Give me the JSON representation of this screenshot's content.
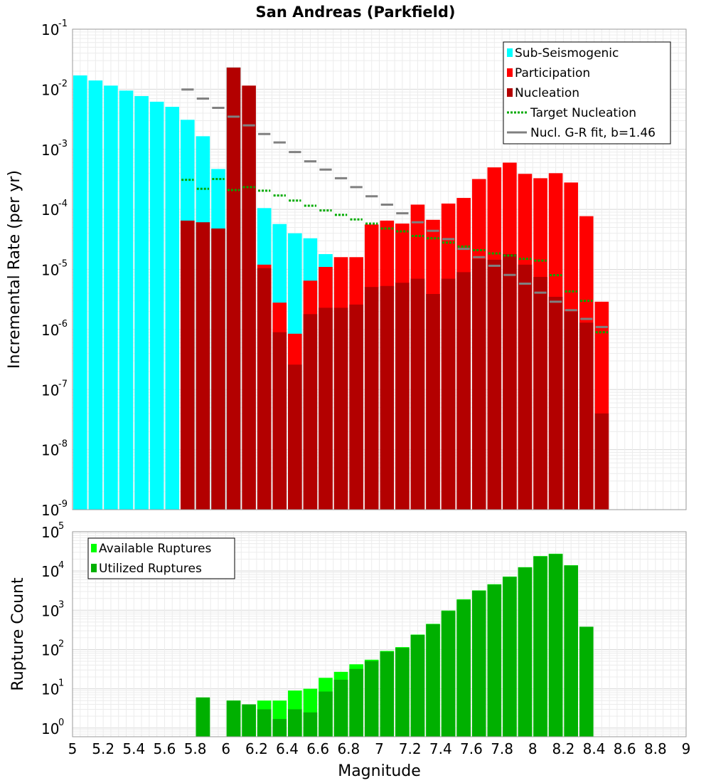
{
  "chart_data": [
    {
      "type": "bar",
      "title": "San Andreas (Parkfield)",
      "ylabel": "Incremental Rate (per yr)",
      "yscale": "log",
      "ylim": [
        1e-09,
        0.1
      ],
      "xlim": [
        5,
        9
      ],
      "bin_width": 0.1,
      "y_ticks": [
        {
          "base": "10",
          "exp": "-9",
          "value": 1e-09
        },
        {
          "base": "10",
          "exp": "-8",
          "value": 1e-08
        },
        {
          "base": "10",
          "exp": "-7",
          "value": 1e-07
        },
        {
          "base": "10",
          "exp": "-6",
          "value": 1e-06
        },
        {
          "base": "10",
          "exp": "-5",
          "value": 1e-05
        },
        {
          "base": "10",
          "exp": "-4",
          "value": 0.0001
        },
        {
          "base": "10",
          "exp": "-3",
          "value": 0.001
        },
        {
          "base": "10",
          "exp": "-2",
          "value": 0.01
        },
        {
          "base": "10",
          "exp": "-1",
          "value": 0.1
        }
      ],
      "legend_position": "top-right",
      "grid": true,
      "series": [
        {
          "name": "Sub-Seismogenic",
          "color": "#00ffff",
          "style": "bar",
          "x": [
            5.05,
            5.15,
            5.25,
            5.35,
            5.45,
            5.55,
            5.65,
            5.75,
            5.85,
            5.95,
            6.05,
            6.25,
            6.35,
            6.45,
            6.55,
            6.65
          ],
          "values": [
            0.017,
            0.014,
            0.0115,
            0.0095,
            0.0077,
            0.0062,
            0.0051,
            0.0031,
            0.00165,
            0.00047,
            0.023,
            0.000105,
            5.7e-05,
            4e-05,
            3.3e-05,
            1.8e-05
          ]
        },
        {
          "name": "Participation",
          "color": "#ff0000",
          "style": "bar",
          "x": [
            6.25,
            6.35,
            6.45,
            6.55,
            6.65,
            6.75,
            6.85,
            6.95,
            7.05,
            7.15,
            7.25,
            7.35,
            7.45,
            7.55,
            7.65,
            7.75,
            7.85,
            7.95,
            8.05,
            8.15,
            8.25,
            8.35,
            8.45
          ],
          "values": [
            1.2e-05,
            2.8e-06,
            8.5e-07,
            6.5e-06,
            1.1e-05,
            1.6e-05,
            1.6e-05,
            5.6e-05,
            6.5e-05,
            5.8e-05,
            0.00012,
            6.7e-05,
            0.000125,
            0.000155,
            0.00032,
            0.0005,
            0.0006,
            0.00039,
            0.00033,
            0.0004,
            0.00028,
            7.7e-05,
            2.9e-06
          ]
        },
        {
          "name": "Nucleation",
          "color": "#b30000",
          "style": "bar",
          "x": [
            5.75,
            5.85,
            5.95,
            6.05,
            6.15,
            6.25,
            6.35,
            6.45,
            6.55,
            6.65,
            6.75,
            6.85,
            6.95,
            7.05,
            7.15,
            7.25,
            7.35,
            7.45,
            7.55,
            7.65,
            7.75,
            7.85,
            7.95,
            8.05,
            8.15,
            8.25,
            8.35,
            8.45
          ],
          "values": [
            6.5e-05,
            6.1e-05,
            4.8e-05,
            0.023,
            0.0115,
            1.05e-05,
            9e-07,
            2.6e-07,
            1.8e-06,
            2.3e-06,
            2.3e-06,
            2.6e-06,
            5.1e-06,
            5.3e-06,
            6e-06,
            7e-06,
            3.9e-06,
            7e-06,
            9e-06,
            1.5e-05,
            1.45e-05,
            1.8e-05,
            1.2e-05,
            7.5e-06,
            3.5e-06,
            2e-06,
            1.3e-06,
            4e-08
          ]
        },
        {
          "name": "Target Nucleation",
          "color": "#00aa00",
          "style": "dotted-segment",
          "x": [
            5.75,
            5.85,
            5.95,
            6.05,
            6.15,
            6.25,
            6.35,
            6.45,
            6.55,
            6.65,
            6.75,
            6.85,
            6.95,
            7.05,
            7.15,
            7.25,
            7.35,
            7.45,
            7.55,
            7.65,
            7.75,
            7.85,
            7.95,
            8.05,
            8.15,
            8.25,
            8.35,
            8.45
          ],
          "values": [
            0.00031,
            0.00022,
            0.00032,
            0.00021,
            0.000235,
            0.000205,
            0.00017,
            0.00014,
            0.000115,
            9.6e-05,
            8.1e-05,
            6.8e-05,
            5.8e-05,
            4.8e-05,
            4.3e-05,
            3.6e-05,
            3.3e-05,
            2.8e-05,
            2.4e-05,
            2.1e-05,
            1.85e-05,
            1.7e-05,
            1.5e-05,
            1.4e-05,
            8e-06,
            4.3e-06,
            3e-06,
            9e-07
          ]
        },
        {
          "name": "Nucl. G-R fit, b=1.46",
          "color": "#808080",
          "style": "segment",
          "x": [
            5.75,
            5.85,
            5.95,
            6.05,
            6.15,
            6.25,
            6.35,
            6.45,
            6.55,
            6.65,
            6.75,
            6.85,
            6.95,
            7.05,
            7.15,
            7.25,
            7.35,
            7.45,
            7.55,
            7.65,
            7.75,
            7.85,
            7.95,
            8.05,
            8.15,
            8.25,
            8.35,
            8.45
          ],
          "values": [
            0.0099,
            0.007,
            0.0049,
            0.0035,
            0.0025,
            0.0018,
            0.0013,
            0.0009,
            0.00063,
            0.00046,
            0.00033,
            0.000235,
            0.000165,
            0.00012,
            8.6e-05,
            6.1e-05,
            4.4e-05,
            3.2e-05,
            2.2e-05,
            1.6e-05,
            1.15e-05,
            8.1e-06,
            5.8e-06,
            4.1e-06,
            2.9e-06,
            2.1e-06,
            1.5e-06,
            1.1e-06
          ]
        }
      ]
    },
    {
      "type": "bar",
      "xlabel": "Magnitude",
      "ylabel": "Rupture Count",
      "yscale": "log",
      "ylim": [
        0.6,
        100000
      ],
      "xlim": [
        5,
        9
      ],
      "bin_width": 0.1,
      "x_ticks": [
        "5",
        "5.2",
        "5.4",
        "5.6",
        "5.8",
        "6",
        "6.2",
        "6.4",
        "6.6",
        "6.8",
        "7",
        "7.2",
        "7.4",
        "7.6",
        "7.8",
        "8",
        "8.2",
        "8.4",
        "8.6",
        "8.8",
        "9"
      ],
      "x_tick_values": [
        5,
        5.2,
        5.4,
        5.6,
        5.8,
        6,
        6.2,
        6.4,
        6.6,
        6.8,
        7,
        7.2,
        7.4,
        7.6,
        7.8,
        8,
        8.2,
        8.4,
        8.6,
        8.8,
        9
      ],
      "y_ticks": [
        {
          "base": "10",
          "exp": "0",
          "value": 1
        },
        {
          "base": "10",
          "exp": "1",
          "value": 10
        },
        {
          "base": "10",
          "exp": "2",
          "value": 100
        },
        {
          "base": "10",
          "exp": "3",
          "value": 1000
        },
        {
          "base": "10",
          "exp": "4",
          "value": 10000
        },
        {
          "base": "10",
          "exp": "5",
          "value": 100000
        }
      ],
      "legend_position": "top-left",
      "grid": true,
      "series": [
        {
          "name": "Available Ruptures",
          "color": "#00ff00",
          "style": "bar",
          "x": [
            5.85,
            6.05,
            6.15,
            6.25,
            6.35,
            6.45,
            6.55,
            6.65,
            6.75,
            6.85,
            6.95,
            7.05,
            7.15,
            7.25,
            7.35,
            7.45,
            7.55,
            7.65,
            7.75,
            7.85,
            7.95,
            8.05,
            8.15,
            8.25,
            8.35
          ],
          "values": [
            6,
            5,
            4,
            5,
            5,
            9,
            10,
            19,
            27,
            42,
            55,
            92,
            115,
            240,
            450,
            980,
            1900,
            3200,
            4600,
            7200,
            12500,
            24000,
            27500,
            14000,
            380
          ]
        },
        {
          "name": "Utilized Ruptures",
          "color": "#00b000",
          "style": "bar",
          "x": [
            5.85,
            6.05,
            6.15,
            6.25,
            6.35,
            6.45,
            6.55,
            6.65,
            6.75,
            6.85,
            6.95,
            7.05,
            7.15,
            7.25,
            7.35,
            7.45,
            7.55,
            7.65,
            7.75,
            7.85,
            7.95,
            8.05,
            8.15,
            8.25,
            8.35
          ],
          "values": [
            6,
            5,
            4,
            3,
            1.7,
            3,
            2.5,
            8.5,
            17,
            32,
            51,
            88,
            110,
            235,
            440,
            960,
            1850,
            3150,
            4500,
            7100,
            12300,
            23500,
            27000,
            13800,
            380
          ]
        }
      ]
    }
  ]
}
